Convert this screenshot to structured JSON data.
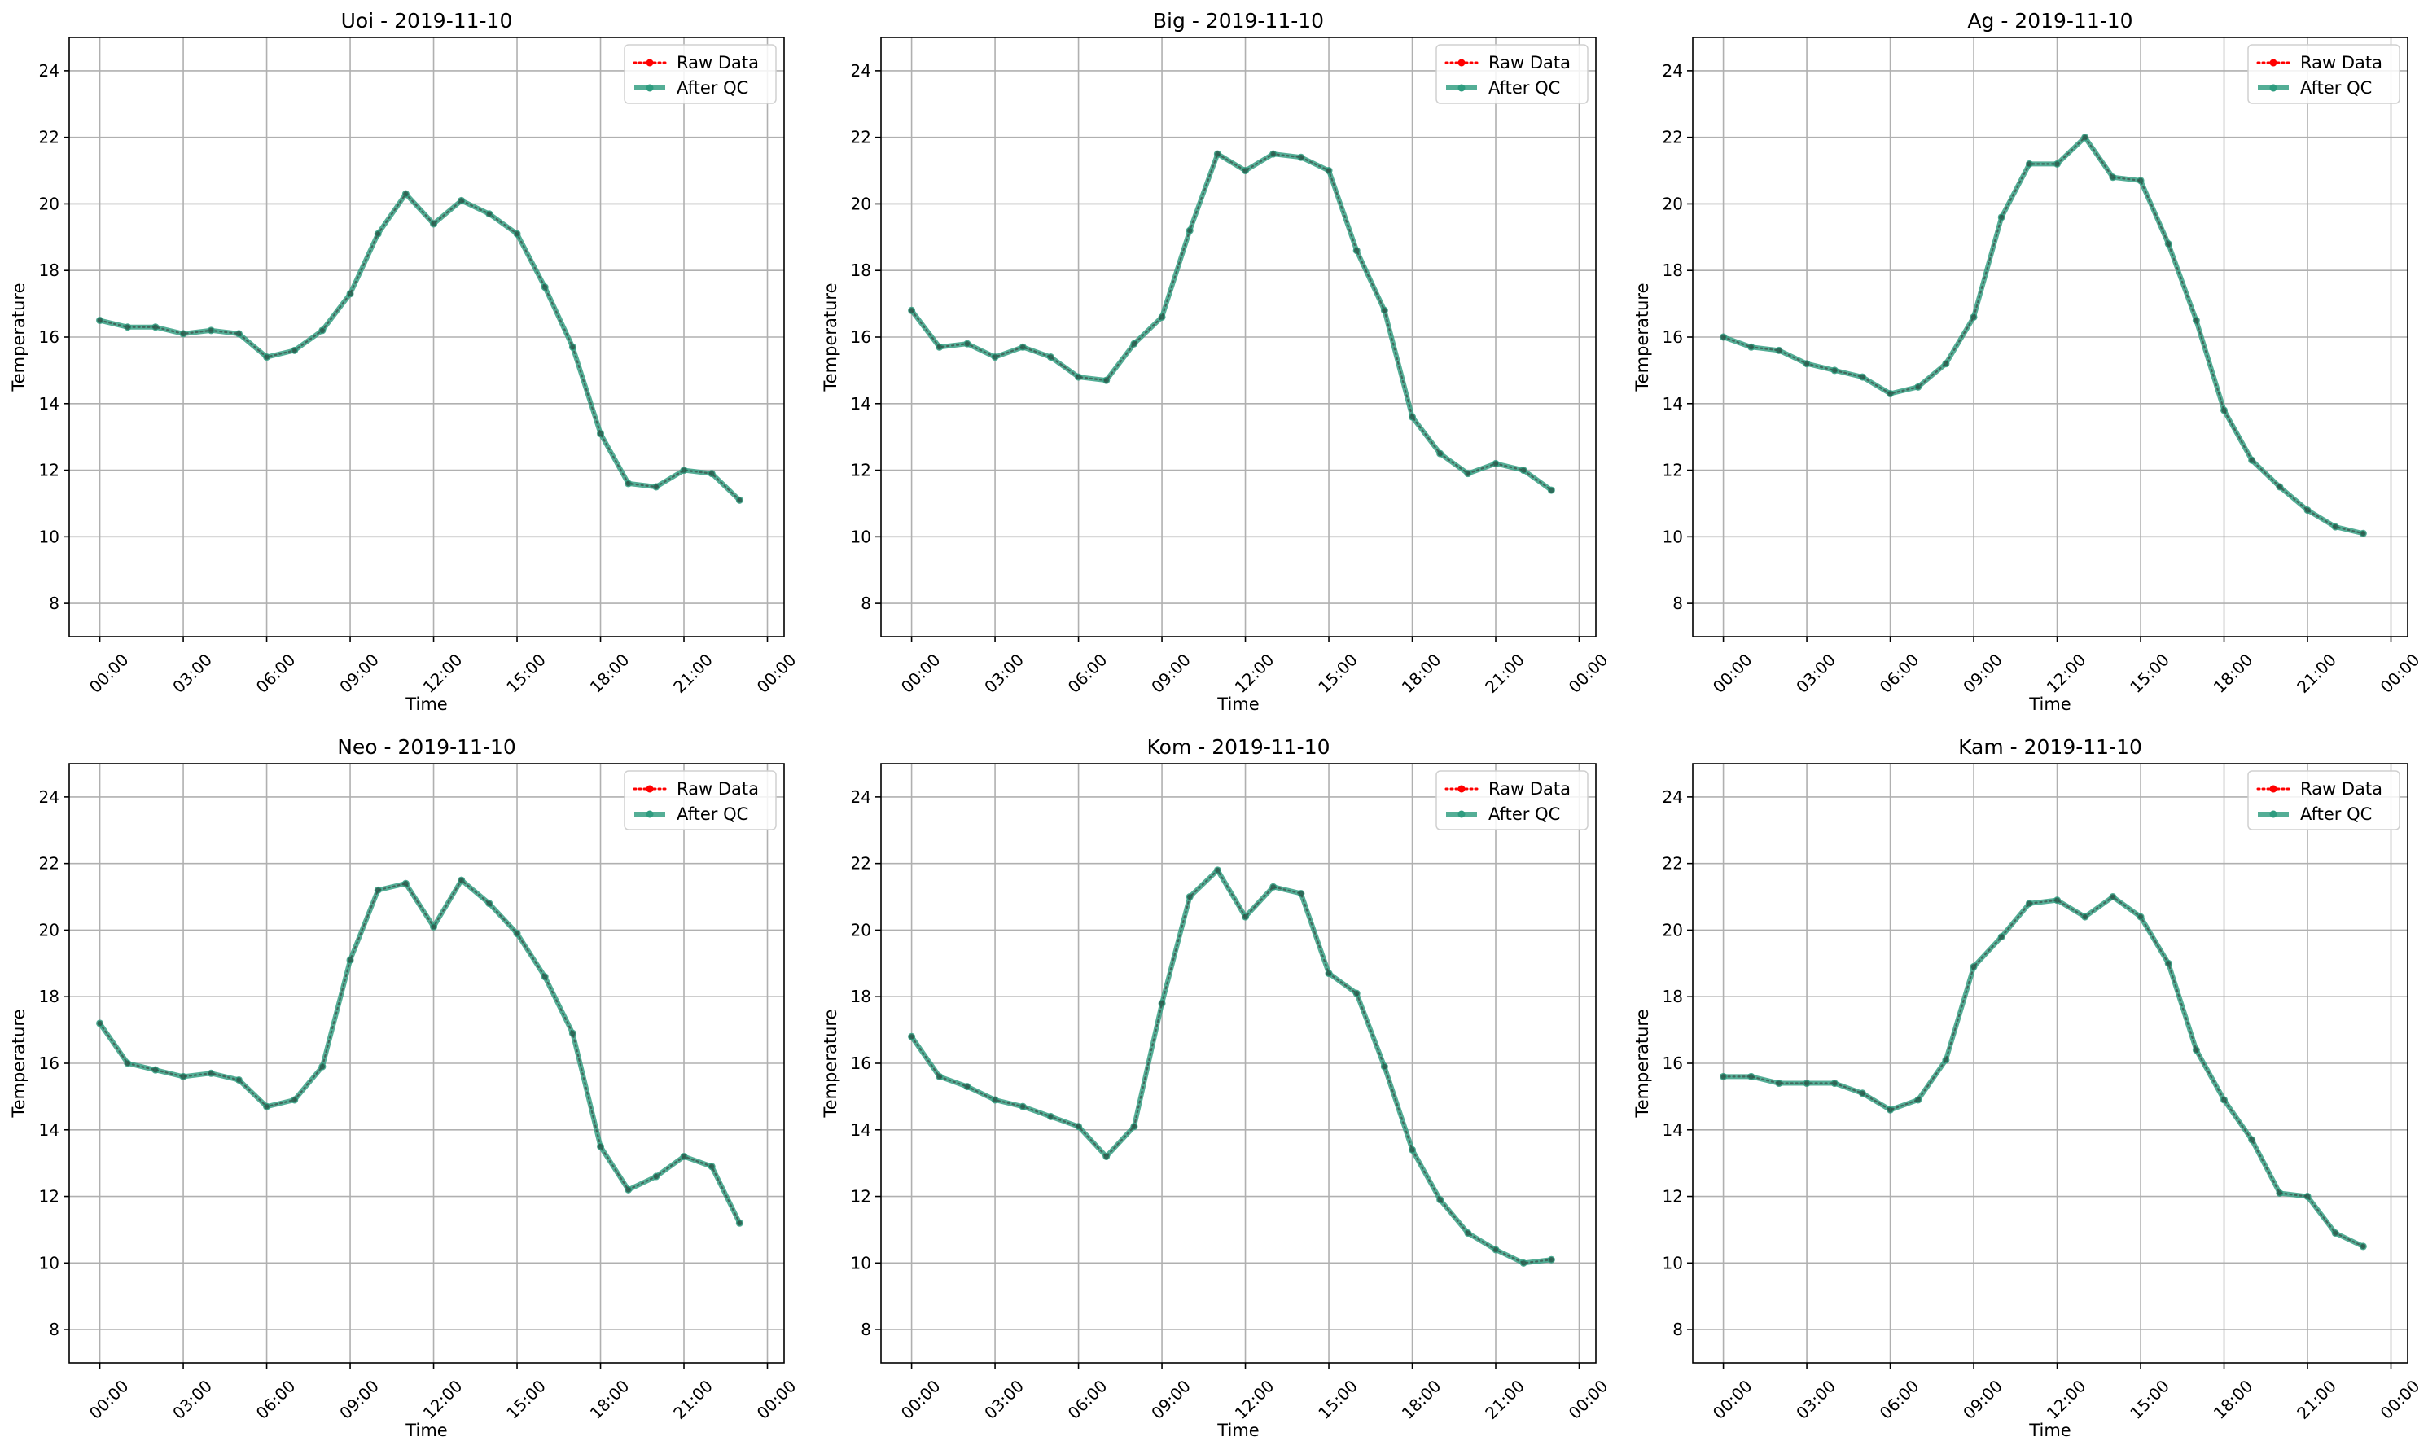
{
  "figure": {
    "background": "#ffffff"
  },
  "chart_data": [
    {
      "type": "line",
      "title": "Uoi - 2019-11-10",
      "xlabel": "Time",
      "ylabel": "Temperature",
      "ylim": [
        7,
        25
      ],
      "yticks": [
        "8",
        "10",
        "12",
        "14",
        "16",
        "18",
        "20",
        "22",
        "24"
      ],
      "xlim": [
        "2019-11-10 00:00",
        "2019-11-11 00:00"
      ],
      "xticks": [
        "00:00",
        "03:00",
        "06:00",
        "09:00",
        "12:00",
        "15:00",
        "18:00",
        "21:00",
        "00:00"
      ],
      "x": [
        "00:00",
        "01:00",
        "02:00",
        "03:00",
        "04:00",
        "05:00",
        "06:00",
        "07:00",
        "08:00",
        "09:00",
        "10:00",
        "11:00",
        "12:00",
        "13:00",
        "14:00",
        "15:00",
        "16:00",
        "17:00",
        "18:00",
        "19:00",
        "20:00",
        "21:00",
        "22:00",
        "23:00"
      ],
      "grid": true,
      "legend_position": "upper right",
      "series": [
        {
          "name": "Raw Data",
          "color": "#ff0000",
          "style": "dotted",
          "marker": "circle",
          "values": [
            16.5,
            16.3,
            16.3,
            16.1,
            16.2,
            16.1,
            15.4,
            15.6,
            16.2,
            17.3,
            19.1,
            20.3,
            19.4,
            20.1,
            19.7,
            19.1,
            17.5,
            15.7,
            13.1,
            11.6,
            11.5,
            12.0,
            11.9,
            11.1
          ]
        },
        {
          "name": "After QC",
          "color": "#2e9c7f",
          "style": "solid",
          "marker": "circle",
          "values": [
            16.5,
            16.3,
            16.3,
            16.1,
            16.2,
            16.1,
            15.4,
            15.6,
            16.2,
            17.3,
            19.1,
            20.3,
            19.4,
            20.1,
            19.7,
            19.1,
            17.5,
            15.7,
            13.1,
            11.6,
            11.5,
            12.0,
            11.9,
            11.1
          ]
        }
      ]
    },
    {
      "type": "line",
      "title": "Big - 2019-11-10",
      "xlabel": "Time",
      "ylabel": "Temperature",
      "ylim": [
        7,
        25
      ],
      "yticks": [
        "8",
        "10",
        "12",
        "14",
        "16",
        "18",
        "20",
        "22",
        "24"
      ],
      "xlim": [
        "2019-11-10 00:00",
        "2019-11-11 00:00"
      ],
      "xticks": [
        "00:00",
        "03:00",
        "06:00",
        "09:00",
        "12:00",
        "15:00",
        "18:00",
        "21:00",
        "00:00"
      ],
      "x": [
        "00:00",
        "01:00",
        "02:00",
        "03:00",
        "04:00",
        "05:00",
        "06:00",
        "07:00",
        "08:00",
        "09:00",
        "10:00",
        "11:00",
        "12:00",
        "13:00",
        "14:00",
        "15:00",
        "16:00",
        "17:00",
        "18:00",
        "19:00",
        "20:00",
        "21:00",
        "22:00",
        "23:00"
      ],
      "grid": true,
      "legend_position": "upper right",
      "series": [
        {
          "name": "Raw Data",
          "color": "#ff0000",
          "style": "dotted",
          "marker": "circle",
          "values": [
            16.8,
            15.7,
            15.8,
            15.4,
            15.7,
            15.4,
            14.8,
            14.7,
            15.8,
            16.6,
            19.2,
            21.5,
            21.0,
            21.5,
            21.4,
            21.0,
            18.6,
            16.8,
            13.6,
            12.5,
            11.9,
            12.2,
            12.0,
            11.4
          ]
        },
        {
          "name": "After QC",
          "color": "#2e9c7f",
          "style": "solid",
          "marker": "circle",
          "values": [
            16.8,
            15.7,
            15.8,
            15.4,
            15.7,
            15.4,
            14.8,
            14.7,
            15.8,
            16.6,
            19.2,
            21.5,
            21.0,
            21.5,
            21.4,
            21.0,
            18.6,
            16.8,
            13.6,
            12.5,
            11.9,
            12.2,
            12.0,
            11.4
          ]
        }
      ]
    },
    {
      "type": "line",
      "title": "Ag - 2019-11-10",
      "xlabel": "Time",
      "ylabel": "Temperature",
      "ylim": [
        7,
        25
      ],
      "yticks": [
        "8",
        "10",
        "12",
        "14",
        "16",
        "18",
        "20",
        "22",
        "24"
      ],
      "xlim": [
        "2019-11-10 00:00",
        "2019-11-11 00:00"
      ],
      "xticks": [
        "00:00",
        "03:00",
        "06:00",
        "09:00",
        "12:00",
        "15:00",
        "18:00",
        "21:00",
        "00:00"
      ],
      "x": [
        "00:00",
        "01:00",
        "02:00",
        "03:00",
        "04:00",
        "05:00",
        "06:00",
        "07:00",
        "08:00",
        "09:00",
        "10:00",
        "11:00",
        "12:00",
        "13:00",
        "14:00",
        "15:00",
        "16:00",
        "17:00",
        "18:00",
        "19:00",
        "20:00",
        "21:00",
        "22:00",
        "23:00"
      ],
      "grid": true,
      "legend_position": "upper right",
      "series": [
        {
          "name": "Raw Data",
          "color": "#ff0000",
          "style": "dotted",
          "marker": "circle",
          "values": [
            16.0,
            15.7,
            15.6,
            15.2,
            15.0,
            14.8,
            14.3,
            14.5,
            15.2,
            16.6,
            19.6,
            21.2,
            21.2,
            22.0,
            20.8,
            20.7,
            18.8,
            16.5,
            13.8,
            12.3,
            11.5,
            10.8,
            10.3,
            10.1
          ]
        },
        {
          "name": "After QC",
          "color": "#2e9c7f",
          "style": "solid",
          "marker": "circle",
          "values": [
            16.0,
            15.7,
            15.6,
            15.2,
            15.0,
            14.8,
            14.3,
            14.5,
            15.2,
            16.6,
            19.6,
            21.2,
            21.2,
            22.0,
            20.8,
            20.7,
            18.8,
            16.5,
            13.8,
            12.3,
            11.5,
            10.8,
            10.3,
            10.1
          ]
        }
      ]
    },
    {
      "type": "line",
      "title": "Neo - 2019-11-10",
      "xlabel": "Time",
      "ylabel": "Temperature",
      "ylim": [
        7,
        25
      ],
      "yticks": [
        "8",
        "10",
        "12",
        "14",
        "16",
        "18",
        "20",
        "22",
        "24"
      ],
      "xlim": [
        "2019-11-10 00:00",
        "2019-11-11 00:00"
      ],
      "xticks": [
        "00:00",
        "03:00",
        "06:00",
        "09:00",
        "12:00",
        "15:00",
        "18:00",
        "21:00",
        "00:00"
      ],
      "x": [
        "00:00",
        "01:00",
        "02:00",
        "03:00",
        "04:00",
        "05:00",
        "06:00",
        "07:00",
        "08:00",
        "09:00",
        "10:00",
        "11:00",
        "12:00",
        "13:00",
        "14:00",
        "15:00",
        "16:00",
        "17:00",
        "18:00",
        "19:00",
        "20:00",
        "21:00",
        "22:00",
        "23:00"
      ],
      "grid": true,
      "legend_position": "upper right",
      "series": [
        {
          "name": "Raw Data",
          "color": "#ff0000",
          "style": "dotted",
          "marker": "circle",
          "values": [
            17.2,
            16.0,
            15.8,
            15.6,
            15.7,
            15.5,
            14.7,
            14.9,
            15.9,
            19.1,
            21.2,
            21.4,
            20.1,
            21.5,
            20.8,
            19.9,
            18.6,
            16.9,
            13.5,
            12.2,
            12.6,
            13.2,
            12.9,
            11.2
          ]
        },
        {
          "name": "After QC",
          "color": "#2e9c7f",
          "style": "solid",
          "marker": "circle",
          "values": [
            17.2,
            16.0,
            15.8,
            15.6,
            15.7,
            15.5,
            14.7,
            14.9,
            15.9,
            19.1,
            21.2,
            21.4,
            20.1,
            21.5,
            20.8,
            19.9,
            18.6,
            16.9,
            13.5,
            12.2,
            12.6,
            13.2,
            12.9,
            11.2
          ]
        }
      ]
    },
    {
      "type": "line",
      "title": "Kom - 2019-11-10",
      "xlabel": "Time",
      "ylabel": "Temperature",
      "ylim": [
        7,
        25
      ],
      "yticks": [
        "8",
        "10",
        "12",
        "14",
        "16",
        "18",
        "20",
        "22",
        "24"
      ],
      "xlim": [
        "2019-11-10 00:00",
        "2019-11-11 00:00"
      ],
      "xticks": [
        "00:00",
        "03:00",
        "06:00",
        "09:00",
        "12:00",
        "15:00",
        "18:00",
        "21:00",
        "00:00"
      ],
      "x": [
        "00:00",
        "01:00",
        "02:00",
        "03:00",
        "04:00",
        "05:00",
        "06:00",
        "07:00",
        "08:00",
        "09:00",
        "10:00",
        "11:00",
        "12:00",
        "13:00",
        "14:00",
        "15:00",
        "16:00",
        "17:00",
        "18:00",
        "19:00",
        "20:00",
        "21:00",
        "22:00",
        "23:00"
      ],
      "grid": true,
      "legend_position": "upper right",
      "series": [
        {
          "name": "Raw Data",
          "color": "#ff0000",
          "style": "dotted",
          "marker": "circle",
          "values": [
            16.8,
            15.6,
            15.3,
            14.9,
            14.7,
            14.4,
            14.1,
            13.2,
            14.1,
            17.8,
            21.0,
            21.8,
            20.4,
            21.3,
            21.1,
            18.7,
            18.1,
            15.9,
            13.4,
            11.9,
            10.9,
            10.4,
            10.0,
            10.1
          ]
        },
        {
          "name": "After QC",
          "color": "#2e9c7f",
          "style": "solid",
          "marker": "circle",
          "values": [
            16.8,
            15.6,
            15.3,
            14.9,
            14.7,
            14.4,
            14.1,
            13.2,
            14.1,
            17.8,
            21.0,
            21.8,
            20.4,
            21.3,
            21.1,
            18.7,
            18.1,
            15.9,
            13.4,
            11.9,
            10.9,
            10.4,
            10.0,
            10.1
          ]
        }
      ]
    },
    {
      "type": "line",
      "title": "Kam - 2019-11-10",
      "xlabel": "Time",
      "ylabel": "Temperature",
      "ylim": [
        7,
        25
      ],
      "yticks": [
        "8",
        "10",
        "12",
        "14",
        "16",
        "18",
        "20",
        "22",
        "24"
      ],
      "xlim": [
        "2019-11-10 00:00",
        "2019-11-11 00:00"
      ],
      "xticks": [
        "00:00",
        "03:00",
        "06:00",
        "09:00",
        "12:00",
        "15:00",
        "18:00",
        "21:00",
        "00:00"
      ],
      "x": [
        "00:00",
        "01:00",
        "02:00",
        "03:00",
        "04:00",
        "05:00",
        "06:00",
        "07:00",
        "08:00",
        "09:00",
        "10:00",
        "11:00",
        "12:00",
        "13:00",
        "14:00",
        "15:00",
        "16:00",
        "17:00",
        "18:00",
        "19:00",
        "20:00",
        "21:00",
        "22:00",
        "23:00"
      ],
      "grid": true,
      "legend_position": "upper right",
      "series": [
        {
          "name": "Raw Data",
          "color": "#ff0000",
          "style": "dotted",
          "marker": "circle",
          "values": [
            15.6,
            15.6,
            15.4,
            15.4,
            15.4,
            15.1,
            14.6,
            14.9,
            16.1,
            18.9,
            19.8,
            20.8,
            20.9,
            20.4,
            21.0,
            20.4,
            19.0,
            16.4,
            14.9,
            13.7,
            12.1,
            12.0,
            10.9,
            10.5
          ]
        },
        {
          "name": "After QC",
          "color": "#2e9c7f",
          "style": "solid",
          "marker": "circle",
          "values": [
            15.6,
            15.6,
            15.4,
            15.4,
            15.4,
            15.1,
            14.6,
            14.9,
            16.1,
            18.9,
            19.8,
            20.8,
            20.9,
            20.4,
            21.0,
            20.4,
            19.0,
            16.4,
            14.9,
            13.7,
            12.1,
            12.0,
            10.9,
            10.5
          ]
        }
      ]
    }
  ]
}
